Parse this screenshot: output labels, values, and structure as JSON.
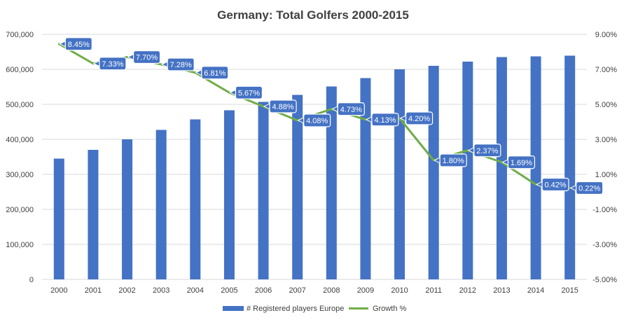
{
  "chart_data": {
    "type": "bar",
    "title": "Germany: Total Golfers 2000-2015",
    "xlabel": "",
    "ylabel": "",
    "categories": [
      "2000",
      "2001",
      "2002",
      "2003",
      "2004",
      "2005",
      "2006",
      "2007",
      "2008",
      "2009",
      "2010",
      "2011",
      "2012",
      "2013",
      "2014",
      "2015"
    ],
    "series": [
      {
        "name": "# Registered players Europe",
        "type": "bar",
        "axis": "left",
        "color": "#4472C4",
        "values": [
          345000,
          370000,
          400000,
          427000,
          457000,
          483000,
          507000,
          527000,
          551000,
          575000,
          600000,
          610000,
          622000,
          635000,
          637000,
          639000
        ]
      },
      {
        "name": "Growth %",
        "type": "line",
        "axis": "right",
        "color": "#70AD47",
        "values": [
          8.45,
          7.33,
          7.7,
          7.28,
          6.81,
          5.67,
          4.88,
          4.08,
          4.73,
          4.13,
          4.2,
          1.8,
          2.37,
          1.69,
          0.42,
          0.22
        ],
        "labels": [
          "8.45%",
          "7.33%",
          "7.70%",
          "7.28%",
          "6.81%",
          "5.67%",
          "4.88%",
          "4.08%",
          "4.73%",
          "4.13%",
          "4.20%",
          "1.80%",
          "2.37%",
          "1.69%",
          "0.42%",
          "0.22%"
        ]
      }
    ],
    "ylim": [
      0,
      700000
    ],
    "y_ticks": [
      "0",
      "100,000",
      "200,000",
      "300,000",
      "400,000",
      "500,000",
      "600,000",
      "700,000"
    ],
    "y2lim": [
      -5,
      9
    ],
    "y2_ticks": [
      "-5.00%",
      "-3.00%",
      "-1.00%",
      "1.00%",
      "3.00%",
      "5.00%",
      "7.00%",
      "9.00%"
    ],
    "grid": true,
    "legend_position": "bottom"
  }
}
